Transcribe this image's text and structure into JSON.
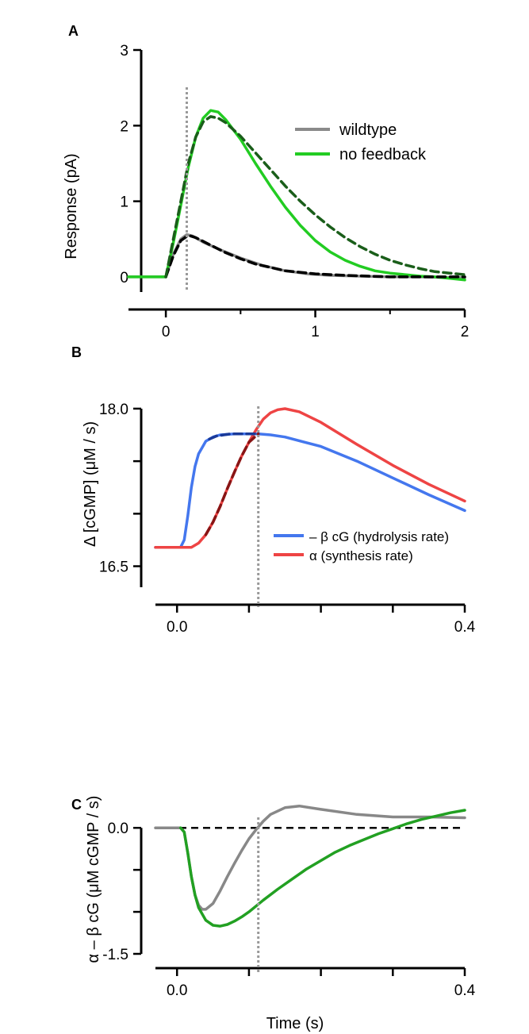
{
  "chart_data": [
    {
      "panel": "A",
      "type": "line",
      "xlabel": "",
      "ylabel": "Response (pA)",
      "xlim": [
        -0.25,
        2
      ],
      "ylim": [
        -0.2,
        3
      ],
      "xticks": [
        0,
        1,
        2
      ],
      "yticks": [
        0,
        1,
        2,
        3
      ],
      "vline_x": 0.14,
      "series": [
        {
          "name": "wildtype",
          "color": "#8a8a8a",
          "style": "solid",
          "x": [
            -0.25,
            0,
            0.05,
            0.1,
            0.14,
            0.18,
            0.25,
            0.35,
            0.5,
            0.65,
            0.8,
            0.95,
            1.1,
            1.3,
            1.5,
            1.7,
            1.9,
            2.0
          ],
          "y": [
            0,
            0,
            0.3,
            0.5,
            0.56,
            0.54,
            0.46,
            0.37,
            0.25,
            0.15,
            0.08,
            0.04,
            0.02,
            0.01,
            0.0,
            0.0,
            -0.01,
            -0.01
          ]
        },
        {
          "name": "no feedback",
          "color": "#22cc22",
          "style": "solid",
          "x": [
            -0.25,
            0,
            0.05,
            0.1,
            0.15,
            0.2,
            0.25,
            0.3,
            0.35,
            0.4,
            0.5,
            0.6,
            0.7,
            0.8,
            0.9,
            1.0,
            1.1,
            1.2,
            1.3,
            1.4,
            1.5,
            1.6,
            1.7,
            1.8,
            1.9,
            2.0
          ],
          "y": [
            0,
            0,
            0.45,
            0.95,
            1.45,
            1.85,
            2.1,
            2.2,
            2.18,
            2.08,
            1.82,
            1.5,
            1.2,
            0.92,
            0.68,
            0.48,
            0.33,
            0.22,
            0.14,
            0.08,
            0.05,
            0.03,
            0.01,
            0.0,
            -0.02,
            -0.04
          ]
        },
        {
          "name": "",
          "color": "#000000",
          "style": "dashed",
          "x": [
            0,
            0.05,
            0.1,
            0.15,
            0.2,
            0.3,
            0.4,
            0.5,
            0.6,
            0.8,
            1.0,
            1.2,
            1.5,
            1.8,
            2.0
          ],
          "y": [
            0,
            0.28,
            0.48,
            0.55,
            0.52,
            0.42,
            0.32,
            0.24,
            0.17,
            0.08,
            0.04,
            0.02,
            0.0,
            0.0,
            0.0
          ]
        },
        {
          "name": "",
          "color": "#1a5e1a",
          "style": "dashed",
          "x": [
            0,
            0.05,
            0.1,
            0.15,
            0.2,
            0.25,
            0.3,
            0.35,
            0.4,
            0.5,
            0.6,
            0.7,
            0.8,
            0.9,
            1.0,
            1.1,
            1.2,
            1.3,
            1.4,
            1.5,
            1.6,
            1.7,
            1.8,
            1.9,
            2.0
          ],
          "y": [
            0,
            0.5,
            1.0,
            1.5,
            1.85,
            2.05,
            2.12,
            2.1,
            2.04,
            1.86,
            1.64,
            1.42,
            1.2,
            1.0,
            0.82,
            0.66,
            0.52,
            0.4,
            0.3,
            0.22,
            0.16,
            0.11,
            0.07,
            0.05,
            0.03
          ]
        }
      ]
    },
    {
      "panel": "B",
      "type": "line",
      "xlabel": "",
      "ylabel": "Δ [cGMP]  (μM / s)",
      "xlim": [
        -0.03,
        0.4
      ],
      "ylim": [
        16.3,
        18.4
      ],
      "xticks": [
        0.0,
        0.1,
        0.2,
        0.3,
        0.4
      ],
      "xticklabels": [
        "0.0",
        "",
        "",
        "",
        "0.4"
      ],
      "yticks": [
        16.5,
        17.0,
        17.5,
        18.0
      ],
      "yticklabels": [
        "16.5",
        "",
        "",
        "18.0"
      ],
      "vline_x": 0.113,
      "series": [
        {
          "name": "– β cG (hydrolysis rate)",
          "color": "#4477ee",
          "style": "solid",
          "x": [
            -0.03,
            0.005,
            0.01,
            0.015,
            0.02,
            0.025,
            0.03,
            0.04,
            0.05,
            0.06,
            0.08,
            0.1,
            0.113,
            0.13,
            0.15,
            0.2,
            0.25,
            0.3,
            0.35,
            0.4
          ],
          "y": [
            16.68,
            16.68,
            16.75,
            16.98,
            17.25,
            17.45,
            17.57,
            17.69,
            17.73,
            17.75,
            17.76,
            17.76,
            17.76,
            17.75,
            17.73,
            17.64,
            17.5,
            17.34,
            17.18,
            17.03
          ]
        },
        {
          "name": "α (synthesis rate)",
          "color": "#ee4444",
          "style": "solid",
          "x": [
            -0.03,
            0.02,
            0.03,
            0.04,
            0.05,
            0.06,
            0.07,
            0.08,
            0.09,
            0.1,
            0.11,
            0.12,
            0.13,
            0.14,
            0.15,
            0.17,
            0.2,
            0.25,
            0.3,
            0.35,
            0.4
          ],
          "y": [
            16.68,
            16.68,
            16.72,
            16.8,
            16.92,
            17.07,
            17.24,
            17.4,
            17.55,
            17.68,
            17.8,
            17.9,
            17.96,
            17.99,
            18.0,
            17.97,
            17.87,
            17.66,
            17.46,
            17.28,
            17.12
          ]
        },
        {
          "name": "",
          "color": "#1a3a99",
          "style": "dashed",
          "x": [
            0.045,
            0.055,
            0.065,
            0.075,
            0.085,
            0.095,
            0.105,
            0.113
          ],
          "y": [
            17.71,
            17.74,
            17.75,
            17.76,
            17.76,
            17.76,
            17.76,
            17.76
          ]
        },
        {
          "name": "",
          "color": "#881515",
          "style": "dashed",
          "x": [
            0.04,
            0.05,
            0.06,
            0.07,
            0.08,
            0.09,
            0.1,
            0.113
          ],
          "y": [
            16.8,
            16.92,
            17.07,
            17.24,
            17.4,
            17.55,
            17.68,
            17.76
          ]
        }
      ]
    },
    {
      "panel": "C",
      "type": "line",
      "xlabel": "Time (s)",
      "ylabel": "α – β cG   (μM cGMP / s)",
      "xlim": [
        -0.03,
        0.4
      ],
      "ylim": [
        -1.5,
        0.55
      ],
      "xticks": [
        0.0,
        0.1,
        0.2,
        0.3,
        0.4
      ],
      "xticklabels": [
        "0.0",
        "",
        "",
        "",
        "0.4"
      ],
      "yticks": [
        -1.5,
        -1.0,
        -0.5,
        0.0
      ],
      "yticklabels": [
        "-1.5",
        "",
        "",
        "0.0"
      ],
      "vline_x": 0.113,
      "hline_y": 0.0,
      "series": [
        {
          "name": "",
          "color": "#888888",
          "style": "solid",
          "x": [
            -0.03,
            0.005,
            0.01,
            0.015,
            0.02,
            0.025,
            0.03,
            0.035,
            0.04,
            0.05,
            0.06,
            0.07,
            0.08,
            0.09,
            0.1,
            0.11,
            0.12,
            0.13,
            0.15,
            0.17,
            0.2,
            0.25,
            0.3,
            0.35,
            0.4
          ],
          "y": [
            0,
            0,
            -0.05,
            -0.3,
            -0.58,
            -0.8,
            -0.92,
            -0.97,
            -0.97,
            -0.9,
            -0.75,
            -0.58,
            -0.42,
            -0.27,
            -0.13,
            -0.02,
            0.08,
            0.16,
            0.24,
            0.26,
            0.22,
            0.16,
            0.13,
            0.13,
            0.12
          ]
        },
        {
          "name": "",
          "color": "#22a022",
          "style": "solid",
          "x": [
            0.005,
            0.01,
            0.015,
            0.02,
            0.025,
            0.03,
            0.04,
            0.05,
            0.06,
            0.07,
            0.08,
            0.09,
            0.1,
            0.11,
            0.12,
            0.14,
            0.16,
            0.18,
            0.2,
            0.22,
            0.24,
            0.26,
            0.28,
            0.3,
            0.32,
            0.34,
            0.36,
            0.38,
            0.4
          ],
          "y": [
            0,
            -0.05,
            -0.3,
            -0.58,
            -0.8,
            -0.95,
            -1.1,
            -1.16,
            -1.17,
            -1.15,
            -1.11,
            -1.06,
            -1.0,
            -0.93,
            -0.86,
            -0.73,
            -0.61,
            -0.49,
            -0.39,
            -0.29,
            -0.21,
            -0.14,
            -0.07,
            -0.01,
            0.05,
            0.1,
            0.14,
            0.18,
            0.21
          ]
        }
      ]
    }
  ]
}
